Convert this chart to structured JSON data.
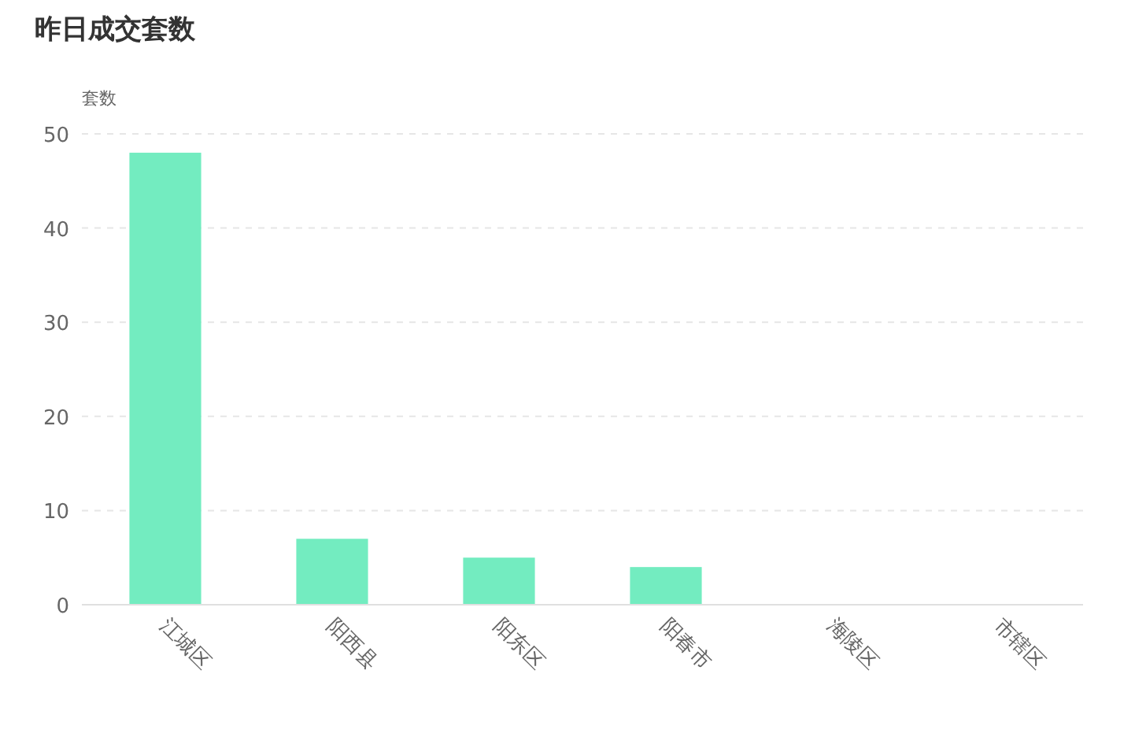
{
  "chart_data": {
    "type": "bar",
    "title": "昨日成交套数",
    "ylabel": "套数",
    "categories": [
      "江城区",
      "阳西县",
      "阳东区",
      "阳春市",
      "海陵区",
      "市辖区"
    ],
    "values": [
      48,
      7,
      5,
      4,
      0,
      0
    ],
    "color": "#73ecc0",
    "ylim": [
      0,
      50
    ],
    "yticks": [
      0,
      10,
      20,
      30,
      40,
      50
    ],
    "grid": "y"
  }
}
